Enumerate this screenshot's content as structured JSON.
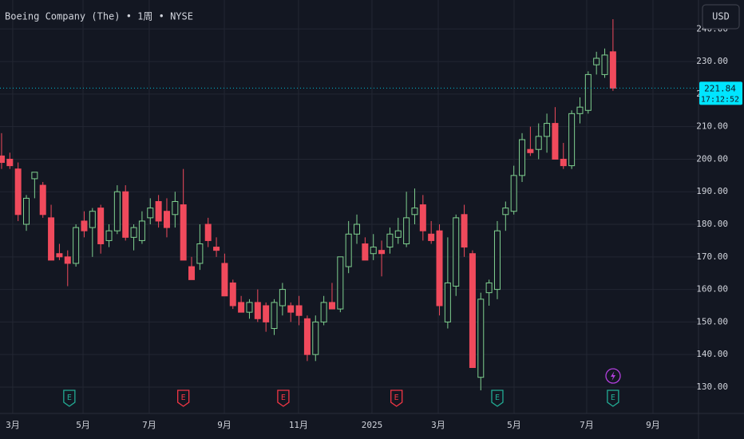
{
  "chart_data": {
    "type": "candlestick",
    "title": "Boeing Company (The) • 1周 • NYSE",
    "currency": "USD",
    "countdown": "17:12:52",
    "up_color": "#7fd08f",
    "down_color": "#f04a5c",
    "up_style": "hollow",
    "open": [
      201,
      200,
      197,
      180,
      194,
      192,
      182,
      171,
      170,
      168,
      181,
      179,
      185,
      175,
      178,
      190,
      176,
      175,
      182,
      187,
      184,
      183,
      186,
      167,
      168,
      180,
      173,
      168,
      162,
      156,
      153,
      156,
      155,
      148,
      155,
      155,
      155,
      151,
      140,
      150,
      156,
      154,
      167,
      177,
      174,
      171,
      172,
      173,
      176,
      174,
      183,
      186,
      177,
      178,
      150,
      161,
      183,
      171,
      133,
      159,
      160,
      183,
      184,
      195,
      203,
      203,
      207,
      211,
      200,
      198,
      214,
      215,
      229,
      226,
      233
    ],
    "high": [
      208,
      202,
      199,
      189,
      196,
      193,
      186,
      174,
      172,
      180,
      184,
      185,
      186,
      180,
      192,
      192,
      180,
      184,
      188,
      189,
      188,
      190,
      197,
      170,
      180,
      182,
      176,
      171,
      163,
      158,
      157,
      160,
      156,
      157,
      162,
      156,
      158,
      152,
      152,
      158,
      162,
      170,
      181,
      183,
      176,
      177,
      175,
      179,
      182,
      190,
      191,
      189,
      181,
      180,
      176,
      183,
      186,
      172,
      159,
      163,
      181,
      187,
      198,
      208,
      210,
      211,
      214,
      216,
      205,
      215,
      219,
      227,
      233,
      234,
      243
    ],
    "low": [
      197,
      197,
      181,
      178,
      188,
      182,
      169,
      169,
      161,
      167,
      176,
      170,
      171,
      173,
      177,
      175,
      172,
      174,
      180,
      179,
      176,
      179,
      169,
      163,
      166,
      173,
      170,
      158,
      154,
      153,
      151,
      150,
      147,
      146,
      152,
      150,
      149,
      138,
      138,
      149,
      155,
      153,
      165,
      174,
      169,
      169,
      164,
      171,
      174,
      173,
      180,
      175,
      174,
      152,
      148,
      158,
      170,
      136,
      129,
      155,
      157,
      178,
      183,
      193,
      201,
      200,
      202,
      200,
      197,
      197,
      211,
      214,
      226,
      225,
      221
    ],
    "close": [
      199,
      198,
      183,
      188,
      196,
      183,
      169,
      170,
      168,
      179,
      178,
      184,
      174,
      178,
      190,
      176,
      179,
      181,
      185,
      181,
      179,
      187,
      169,
      163,
      174,
      175,
      172,
      158,
      155,
      153,
      156,
      151,
      150,
      156,
      160,
      153,
      152,
      140,
      150,
      156,
      154,
      170,
      177,
      180,
      169,
      173,
      171,
      177,
      178,
      182,
      185,
      178,
      175,
      155,
      162,
      182,
      173,
      136,
      157,
      162,
      178,
      185,
      195,
      206,
      202,
      207,
      211,
      200,
      198,
      214,
      216,
      226,
      231,
      232,
      221.84
    ],
    "xlim": [
      -0.19,
      84.35
    ],
    "xticks": [
      {
        "value": 1.35,
        "label": "3月"
      },
      {
        "value": 9.86,
        "label": "5月"
      },
      {
        "value": 17.87,
        "label": "7月"
      },
      {
        "value": 26.96,
        "label": "9月"
      },
      {
        "value": 35.94,
        "label": "11月"
      },
      {
        "value": 44.83,
        "label": "2025"
      },
      {
        "value": 52.85,
        "label": "3月"
      },
      {
        "value": 62.03,
        "label": "5月"
      },
      {
        "value": 70.82,
        "label": "7月"
      },
      {
        "value": 78.84,
        "label": "9月"
      }
    ],
    "ylim": [
      121.9,
      248.9
    ],
    "yticks": [
      {
        "value": 130,
        "label": "130.00"
      },
      {
        "value": 140,
        "label": "140.00"
      },
      {
        "value": 150,
        "label": "150.00"
      },
      {
        "value": 160,
        "label": "160.00"
      },
      {
        "value": 170,
        "label": "170.00"
      },
      {
        "value": 180,
        "label": "180.00"
      },
      {
        "value": 190,
        "label": "190.00"
      },
      {
        "value": 200,
        "label": "200.00"
      },
      {
        "value": 210,
        "label": "210.00"
      },
      {
        "value": 220,
        "label": "220.00"
      },
      {
        "value": 230,
        "label": "230.00"
      },
      {
        "value": 240,
        "label": "240.00"
      }
    ],
    "grid": true,
    "events": [
      {
        "x": 8.2,
        "label": "E",
        "color": "#22ab94"
      },
      {
        "x": 22,
        "label": "E",
        "color": "#f23645"
      },
      {
        "x": 34.1,
        "label": "E",
        "color": "#f23645"
      },
      {
        "x": 47.8,
        "label": "E",
        "color": "#f23645"
      },
      {
        "x": 60,
        "label": "E",
        "color": "#22ab94"
      },
      {
        "x": 74,
        "label": "E",
        "color": "#22ab94"
      }
    ]
  }
}
